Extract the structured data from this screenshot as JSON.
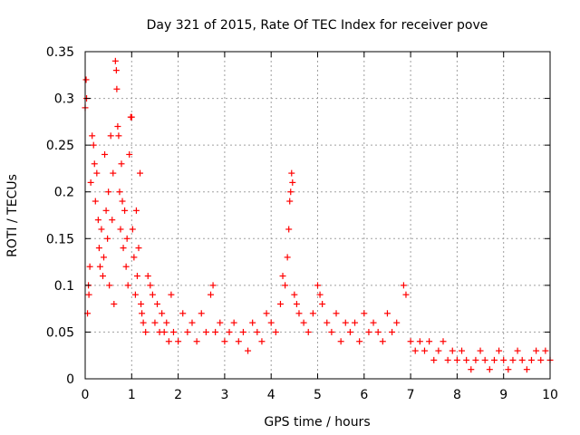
{
  "chart_data": {
    "type": "scatter",
    "title": "Day 321 of 2015, Rate Of TEC Index for receiver pove",
    "xlabel": "GPS time / hours",
    "ylabel": "ROTI / TECUs",
    "xlim": [
      0,
      10
    ],
    "ylim": [
      0,
      0.35
    ],
    "x_ticks": [
      0,
      1,
      2,
      3,
      4,
      5,
      6,
      7,
      8,
      9,
      10
    ],
    "x_tick_labels": [
      "0",
      "1",
      "2",
      "3",
      "4",
      "5",
      "6",
      "7",
      "8",
      "9",
      "10"
    ],
    "y_ticks": [
      0,
      0.05,
      0.1,
      0.15,
      0.2,
      0.25,
      0.3,
      0.35
    ],
    "y_tick_labels": [
      "0",
      "0.05",
      "0.1",
      "0.15",
      "0.2",
      "0.25",
      "0.3",
      "0.35"
    ],
    "grid": true,
    "marker": "+",
    "color": "#ff0000",
    "series": [
      {
        "name": "ROTI",
        "points": [
          [
            0.0,
            0.29
          ],
          [
            0.02,
            0.32
          ],
          [
            0.03,
            0.3
          ],
          [
            0.05,
            0.07
          ],
          [
            0.07,
            0.1
          ],
          [
            0.08,
            0.09
          ],
          [
            0.1,
            0.12
          ],
          [
            0.12,
            0.21
          ],
          [
            0.15,
            0.26
          ],
          [
            0.18,
            0.25
          ],
          [
            0.2,
            0.23
          ],
          [
            0.22,
            0.19
          ],
          [
            0.25,
            0.22
          ],
          [
            0.28,
            0.17
          ],
          [
            0.3,
            0.14
          ],
          [
            0.32,
            0.12
          ],
          [
            0.35,
            0.16
          ],
          [
            0.38,
            0.11
          ],
          [
            0.4,
            0.13
          ],
          [
            0.42,
            0.24
          ],
          [
            0.45,
            0.18
          ],
          [
            0.48,
            0.15
          ],
          [
            0.5,
            0.2
          ],
          [
            0.52,
            0.1
          ],
          [
            0.55,
            0.26
          ],
          [
            0.58,
            0.17
          ],
          [
            0.6,
            0.22
          ],
          [
            0.62,
            0.08
          ],
          [
            0.65,
            0.34
          ],
          [
            0.67,
            0.33
          ],
          [
            0.68,
            0.31
          ],
          [
            0.7,
            0.27
          ],
          [
            0.72,
            0.26
          ],
          [
            0.74,
            0.2
          ],
          [
            0.76,
            0.16
          ],
          [
            0.78,
            0.23
          ],
          [
            0.8,
            0.19
          ],
          [
            0.82,
            0.14
          ],
          [
            0.85,
            0.18
          ],
          [
            0.88,
            0.12
          ],
          [
            0.9,
            0.15
          ],
          [
            0.92,
            0.1
          ],
          [
            0.95,
            0.24
          ],
          [
            0.98,
            0.28
          ],
          [
            1.0,
            0.28
          ],
          [
            1.02,
            0.16
          ],
          [
            1.05,
            0.13
          ],
          [
            1.08,
            0.09
          ],
          [
            1.1,
            0.18
          ],
          [
            1.12,
            0.11
          ],
          [
            1.15,
            0.14
          ],
          [
            1.18,
            0.22
          ],
          [
            1.2,
            0.08
          ],
          [
            1.22,
            0.07
          ],
          [
            1.25,
            0.06
          ],
          [
            1.3,
            0.05
          ],
          [
            1.35,
            0.11
          ],
          [
            1.4,
            0.1
          ],
          [
            1.45,
            0.09
          ],
          [
            1.5,
            0.06
          ],
          [
            1.55,
            0.08
          ],
          [
            1.6,
            0.05
          ],
          [
            1.65,
            0.07
          ],
          [
            1.7,
            0.05
          ],
          [
            1.75,
            0.06
          ],
          [
            1.8,
            0.04
          ],
          [
            1.85,
            0.09
          ],
          [
            1.9,
            0.05
          ],
          [
            2.0,
            0.04
          ],
          [
            2.1,
            0.07
          ],
          [
            2.2,
            0.05
          ],
          [
            2.3,
            0.06
          ],
          [
            2.4,
            0.04
          ],
          [
            2.5,
            0.07
          ],
          [
            2.6,
            0.05
          ],
          [
            2.7,
            0.09
          ],
          [
            2.75,
            0.1
          ],
          [
            2.8,
            0.05
          ],
          [
            2.9,
            0.06
          ],
          [
            3.0,
            0.04
          ],
          [
            3.1,
            0.05
          ],
          [
            3.2,
            0.06
          ],
          [
            3.3,
            0.04
          ],
          [
            3.4,
            0.05
          ],
          [
            3.5,
            0.03
          ],
          [
            3.6,
            0.06
          ],
          [
            3.7,
            0.05
          ],
          [
            3.8,
            0.04
          ],
          [
            3.9,
            0.07
          ],
          [
            4.0,
            0.06
          ],
          [
            4.1,
            0.05
          ],
          [
            4.2,
            0.08
          ],
          [
            4.25,
            0.11
          ],
          [
            4.3,
            0.1
          ],
          [
            4.35,
            0.13
          ],
          [
            4.38,
            0.16
          ],
          [
            4.4,
            0.19
          ],
          [
            4.42,
            0.2
          ],
          [
            4.44,
            0.22
          ],
          [
            4.46,
            0.21
          ],
          [
            4.5,
            0.09
          ],
          [
            4.55,
            0.08
          ],
          [
            4.6,
            0.07
          ],
          [
            4.7,
            0.06
          ],
          [
            4.8,
            0.05
          ],
          [
            4.9,
            0.07
          ],
          [
            5.0,
            0.1
          ],
          [
            5.05,
            0.09
          ],
          [
            5.1,
            0.08
          ],
          [
            5.2,
            0.06
          ],
          [
            5.3,
            0.05
          ],
          [
            5.4,
            0.07
          ],
          [
            5.5,
            0.04
          ],
          [
            5.6,
            0.06
          ],
          [
            5.7,
            0.05
          ],
          [
            5.8,
            0.06
          ],
          [
            5.9,
            0.04
          ],
          [
            6.0,
            0.07
          ],
          [
            6.1,
            0.05
          ],
          [
            6.2,
            0.06
          ],
          [
            6.3,
            0.05
          ],
          [
            6.4,
            0.04
          ],
          [
            6.5,
            0.07
          ],
          [
            6.6,
            0.05
          ],
          [
            6.7,
            0.06
          ],
          [
            6.85,
            0.1
          ],
          [
            6.9,
            0.09
          ],
          [
            7.0,
            0.04
          ],
          [
            7.1,
            0.03
          ],
          [
            7.2,
            0.04
          ],
          [
            7.3,
            0.03
          ],
          [
            7.4,
            0.04
          ],
          [
            7.5,
            0.02
          ],
          [
            7.6,
            0.03
          ],
          [
            7.7,
            0.04
          ],
          [
            7.8,
            0.02
          ],
          [
            7.9,
            0.03
          ],
          [
            8.0,
            0.02
          ],
          [
            8.1,
            0.03
          ],
          [
            8.2,
            0.02
          ],
          [
            8.3,
            0.01
          ],
          [
            8.4,
            0.02
          ],
          [
            8.5,
            0.03
          ],
          [
            8.6,
            0.02
          ],
          [
            8.7,
            0.01
          ],
          [
            8.8,
            0.02
          ],
          [
            8.9,
            0.03
          ],
          [
            9.0,
            0.02
          ],
          [
            9.1,
            0.01
          ],
          [
            9.2,
            0.02
          ],
          [
            9.3,
            0.03
          ],
          [
            9.4,
            0.02
          ],
          [
            9.5,
            0.01
          ],
          [
            9.6,
            0.02
          ],
          [
            9.7,
            0.03
          ],
          [
            9.8,
            0.02
          ],
          [
            9.9,
            0.03
          ],
          [
            10.0,
            0.02
          ]
        ]
      }
    ]
  }
}
